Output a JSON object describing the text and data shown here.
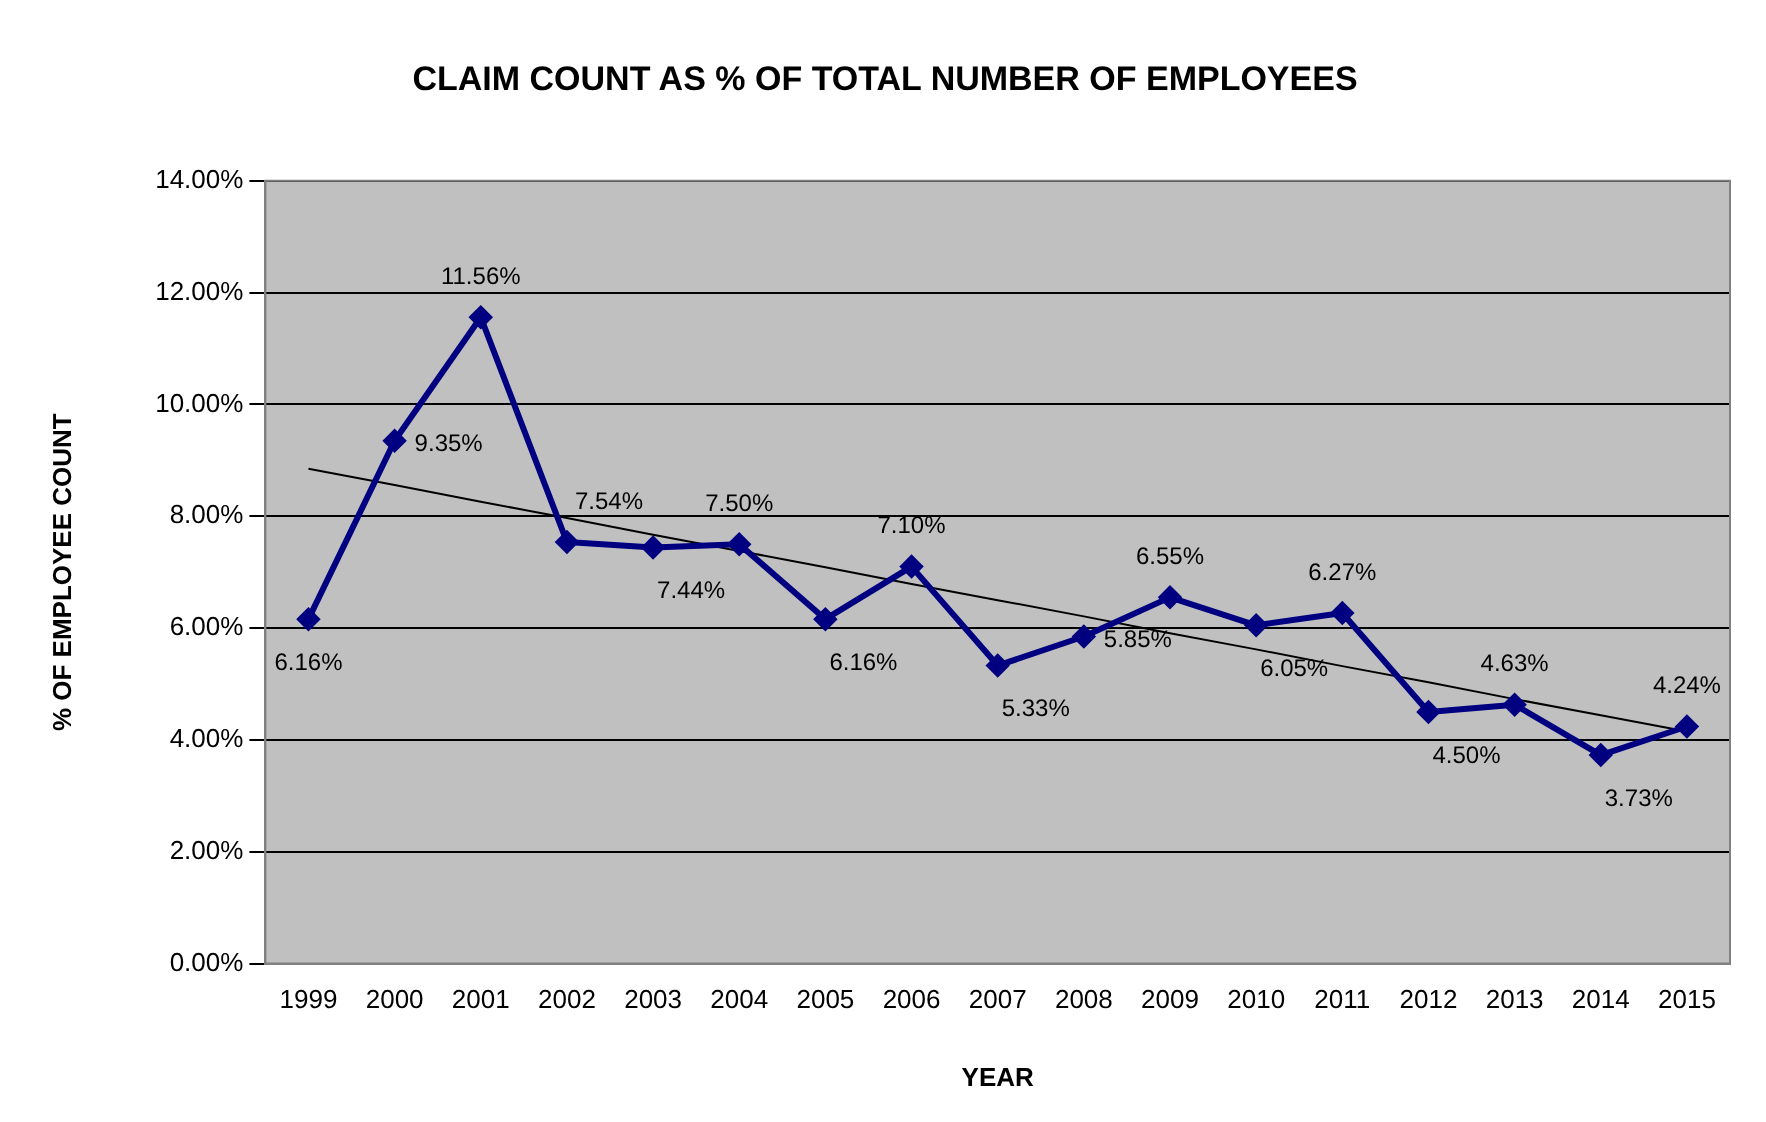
{
  "chart_data": {
    "type": "line",
    "title": "CLAIM COUNT AS % OF TOTAL NUMBER OF EMPLOYEES",
    "xlabel": "YEAR",
    "ylabel": "% OF EMPLOYEE COUNT",
    "categories": [
      "1999",
      "2000",
      "2001",
      "2002",
      "2003",
      "2004",
      "2005",
      "2006",
      "2007",
      "2008",
      "2009",
      "2010",
      "2011",
      "2012",
      "2013",
      "2014",
      "2015"
    ],
    "series": [
      {
        "color": "#000080",
        "marker": "diamond",
        "values": [
          6.16,
          9.35,
          11.56,
          7.54,
          7.44,
          7.5,
          6.16,
          7.1,
          5.33,
          5.85,
          6.55,
          6.05,
          6.27,
          4.5,
          4.63,
          3.73,
          4.24
        ],
        "value_labels": [
          "6.16%",
          "9.35%",
          "11.56%",
          "7.54%",
          "7.44%",
          "7.50%",
          "6.16%",
          "7.10%",
          "5.33%",
          "5.85%",
          "6.55%",
          "6.05%",
          "6.27%",
          "4.50%",
          "4.63%",
          "3.73%",
          "4.24%"
        ]
      },
      {
        "type": "line",
        "color": "#000000",
        "marker": "none",
        "values": [
          8.85,
          8.56,
          8.26,
          7.97,
          7.67,
          7.38,
          7.09,
          6.79,
          6.5,
          6.21,
          5.91,
          5.62,
          5.32,
          5.03,
          4.73,
          4.44,
          4.15
        ]
      }
    ],
    "ylim": [
      0,
      14
    ],
    "yticks": [
      {
        "value": 0,
        "label": "0.00%"
      },
      {
        "value": 2,
        "label": "2.00%"
      },
      {
        "value": 4,
        "label": "4.00%"
      },
      {
        "value": 6,
        "label": "6.00%"
      },
      {
        "value": 8,
        "label": "8.00%"
      },
      {
        "value": 10,
        "label": "10.00%"
      },
      {
        "value": 12,
        "label": "12.00%"
      },
      {
        "value": 14,
        "label": "14.00%"
      }
    ],
    "grid": "y",
    "legend": false
  }
}
